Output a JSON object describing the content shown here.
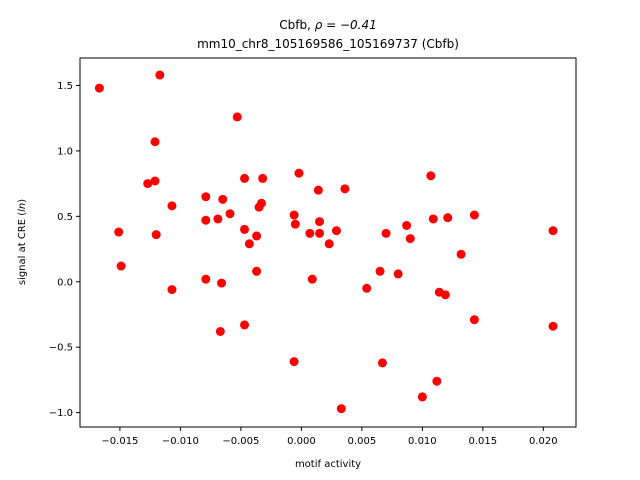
{
  "chart_data": {
    "type": "scatter",
    "title_line1": "Cbfb, ",
    "title_rho": "ρ = −0.41",
    "title_line2": "mm10_chr8_105169586_105169737 (Cbfb)",
    "xlabel": "motif activity",
    "ylabel_prefix": "signal at CRE (",
    "ylabel_italic": "ln",
    "ylabel_suffix": ")",
    "xlim": [
      -0.0183,
      0.0227
    ],
    "ylim": [
      -1.11,
      1.71
    ],
    "x_ticks": [
      -0.015,
      -0.01,
      -0.005,
      0.0,
      0.005,
      0.01,
      0.015,
      0.02
    ],
    "x_tick_labels": [
      "−0.015",
      "−0.010",
      "−0.005",
      "0.000",
      "0.005",
      "0.010",
      "0.015",
      "0.020"
    ],
    "y_ticks": [
      -1.0,
      -0.5,
      0.0,
      0.5,
      1.0,
      1.5
    ],
    "y_tick_labels": [
      "−1.0",
      "−0.5",
      "0.0",
      "0.5",
      "1.0",
      "1.5"
    ],
    "grid": false,
    "marker_color": "#ff0000",
    "points": [
      {
        "x": -0.0167,
        "y": 1.48
      },
      {
        "x": -0.0117,
        "y": 1.58
      },
      {
        "x": -0.0053,
        "y": 1.26
      },
      {
        "x": -0.0121,
        "y": 1.07
      },
      {
        "x": -0.0127,
        "y": 0.75
      },
      {
        "x": -0.0121,
        "y": 0.77
      },
      {
        "x": -0.0107,
        "y": 0.58
      },
      {
        "x": -0.0079,
        "y": 0.65
      },
      {
        "x": -0.0065,
        "y": 0.63
      },
      {
        "x": -0.0047,
        "y": 0.79
      },
      {
        "x": -0.0032,
        "y": 0.79
      },
      {
        "x": -0.0002,
        "y": 0.83
      },
      {
        "x": 0.0014,
        "y": 0.7
      },
      {
        "x": 0.0036,
        "y": 0.71
      },
      {
        "x": 0.0107,
        "y": 0.81
      },
      {
        "x": -0.0033,
        "y": 0.6
      },
      {
        "x": -0.0035,
        "y": 0.57
      },
      {
        "x": -0.0059,
        "y": 0.52
      },
      {
        "x": -0.0079,
        "y": 0.47
      },
      {
        "x": -0.0069,
        "y": 0.48
      },
      {
        "x": -0.0151,
        "y": 0.38
      },
      {
        "x": -0.012,
        "y": 0.36
      },
      {
        "x": -0.0047,
        "y": 0.4
      },
      {
        "x": -0.0037,
        "y": 0.35
      },
      {
        "x": -0.0043,
        "y": 0.29
      },
      {
        "x": -0.0006,
        "y": 0.51
      },
      {
        "x": -0.0005,
        "y": 0.44
      },
      {
        "x": 0.0007,
        "y": 0.37
      },
      {
        "x": 0.0015,
        "y": 0.46
      },
      {
        "x": 0.0015,
        "y": 0.37
      },
      {
        "x": 0.0023,
        "y": 0.29
      },
      {
        "x": 0.0029,
        "y": 0.39
      },
      {
        "x": 0.007,
        "y": 0.37
      },
      {
        "x": 0.0087,
        "y": 0.43
      },
      {
        "x": 0.009,
        "y": 0.33
      },
      {
        "x": 0.0109,
        "y": 0.48
      },
      {
        "x": 0.0121,
        "y": 0.49
      },
      {
        "x": 0.0143,
        "y": 0.51
      },
      {
        "x": 0.0208,
        "y": 0.39
      },
      {
        "x": -0.0149,
        "y": 0.12
      },
      {
        "x": -0.0037,
        "y": 0.08
      },
      {
        "x": -0.0079,
        "y": 0.02
      },
      {
        "x": -0.0066,
        "y": -0.01
      },
      {
        "x": -0.0107,
        "y": -0.06
      },
      {
        "x": 0.0009,
        "y": 0.02
      },
      {
        "x": 0.0054,
        "y": -0.05
      },
      {
        "x": 0.0065,
        "y": 0.08
      },
      {
        "x": 0.008,
        "y": 0.06
      },
      {
        "x": 0.0132,
        "y": 0.21
      },
      {
        "x": 0.0114,
        "y": -0.08
      },
      {
        "x": 0.0119,
        "y": -0.1
      },
      {
        "x": 0.0143,
        "y": -0.29
      },
      {
        "x": 0.0208,
        "y": -0.34
      },
      {
        "x": -0.0047,
        "y": -0.33
      },
      {
        "x": -0.0067,
        "y": -0.38
      },
      {
        "x": -0.0006,
        "y": -0.61
      },
      {
        "x": 0.0067,
        "y": -0.62
      },
      {
        "x": 0.0112,
        "y": -0.76
      },
      {
        "x": 0.01,
        "y": -0.88
      },
      {
        "x": 0.0033,
        "y": -0.97
      }
    ]
  }
}
